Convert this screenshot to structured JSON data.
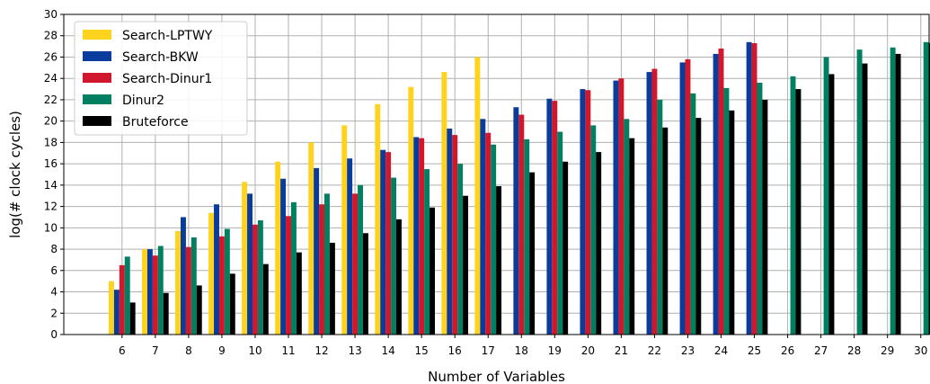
{
  "chart_data": {
    "type": "bar",
    "xlabel": "Number of Variables",
    "ylabel": "log(# clock cycles)",
    "ylim": [
      0,
      30
    ],
    "yticks": [
      0,
      2,
      4,
      6,
      8,
      10,
      12,
      14,
      16,
      18,
      20,
      22,
      24,
      26,
      28,
      30
    ],
    "grid": true,
    "legend_position": "top-left",
    "categories": [
      "6",
      "7",
      "8",
      "9",
      "10",
      "11",
      "12",
      "13",
      "14",
      "15",
      "16",
      "17",
      "18",
      "19",
      "20",
      "21",
      "22",
      "23",
      "24",
      "25",
      "26",
      "27",
      "28",
      "29",
      "30"
    ],
    "series": [
      {
        "name": "Search-LPTWY",
        "color": "#FFD21E",
        "values": [
          5.0,
          8.0,
          9.7,
          11.4,
          14.3,
          16.2,
          18.0,
          19.6,
          21.6,
          23.2,
          24.6,
          26.0,
          null,
          null,
          null,
          null,
          null,
          null,
          null,
          null,
          null,
          null,
          null,
          null,
          null
        ]
      },
      {
        "name": "Search-BKW",
        "color": "#0A3C9C",
        "values": [
          4.2,
          8.0,
          11.0,
          12.2,
          13.2,
          14.6,
          15.6,
          16.5,
          17.3,
          18.5,
          19.3,
          20.2,
          21.3,
          22.1,
          23.0,
          23.8,
          24.6,
          25.5,
          26.3,
          27.4,
          null,
          null,
          null,
          null,
          null
        ]
      },
      {
        "name": "Search-Dinur1",
        "color": "#D0172B",
        "values": [
          6.5,
          7.4,
          8.2,
          9.2,
          10.3,
          11.1,
          12.2,
          13.2,
          17.1,
          18.4,
          18.7,
          18.9,
          20.6,
          21.9,
          22.9,
          24.0,
          24.9,
          25.8,
          26.8,
          27.3,
          null,
          null,
          null,
          null,
          null
        ]
      },
      {
        "name": "Dinur2",
        "color": "#008060",
        "values": [
          7.3,
          8.3,
          9.1,
          9.9,
          10.7,
          12.4,
          13.2,
          14.0,
          14.7,
          15.5,
          16.0,
          17.8,
          18.3,
          19.0,
          19.6,
          20.2,
          22.0,
          22.6,
          23.1,
          23.6,
          24.2,
          26.0,
          26.7,
          26.9,
          27.4
        ]
      },
      {
        "name": "Bruteforce",
        "color": "#000000",
        "values": [
          3.0,
          3.9,
          4.6,
          5.7,
          6.6,
          7.7,
          8.6,
          9.5,
          10.8,
          11.9,
          13.0,
          13.9,
          15.2,
          16.2,
          17.1,
          18.4,
          19.4,
          20.3,
          21.0,
          22.0,
          23.0,
          24.4,
          25.4,
          26.3,
          27.3
        ]
      }
    ]
  }
}
